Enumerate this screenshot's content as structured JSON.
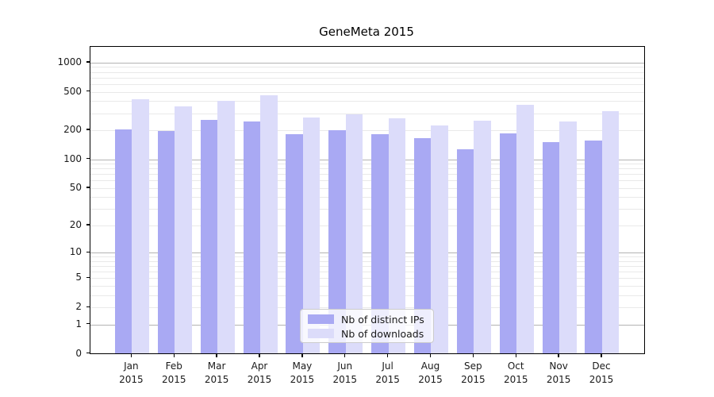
{
  "title": "GeneMeta 2015",
  "chart_data": {
    "type": "bar",
    "title": "GeneMeta 2015",
    "categories": [
      "Jan 2015",
      "Feb 2015",
      "Mar 2015",
      "Apr 2015",
      "May 2015",
      "Jun 2015",
      "Jul 2015",
      "Aug 2015",
      "Sep 2015",
      "Oct 2015",
      "Nov 2015",
      "Dec 2015"
    ],
    "series": [
      {
        "name": "Nb of distinct IPs",
        "color": "#a9a9f3",
        "values": [
          205,
          195,
          256,
          245,
          181,
          199,
          182,
          165,
          128,
          184,
          150,
          156
        ]
      },
      {
        "name": "Nb of downloads",
        "color": "#dcdcfa",
        "values": [
          415,
          350,
          400,
          457,
          270,
          294,
          268,
          226,
          250,
          370,
          246,
          313
        ]
      }
    ],
    "xlabel": "",
    "ylabel": "",
    "yscale": "log1p",
    "ylim": [
      0,
      1455
    ],
    "yticks": [
      1000,
      500,
      200,
      100,
      50,
      20,
      10,
      5,
      2,
      1,
      0
    ],
    "major_grid_values": [
      1000,
      100,
      10,
      1
    ],
    "minor_grid_values": [
      2,
      3,
      4,
      5,
      6,
      7,
      8,
      9,
      20,
      30,
      40,
      50,
      60,
      70,
      80,
      90,
      200,
      300,
      400,
      500,
      600,
      700,
      800,
      900
    ],
    "grid": true,
    "legend_position": "lower center",
    "colors": {
      "major_grid": "#b3b3b3",
      "minor_grid": "#e9e9e9",
      "axis": "#000000",
      "text": "#1a1a1a"
    }
  }
}
